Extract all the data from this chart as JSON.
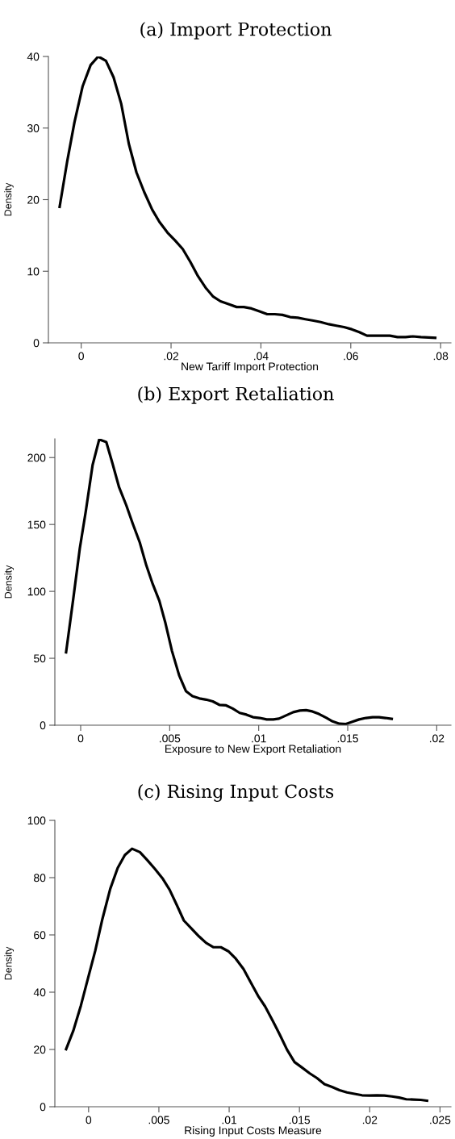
{
  "chart_data": [
    {
      "type": "line",
      "title": "(a) Import Protection",
      "xlabel": "New Tariff Import Protection",
      "ylabel": "Density",
      "xlim": [
        -0.0073,
        0.0823
      ],
      "ylim": [
        0,
        40
      ],
      "xticks": [
        {
          "value": 0,
          "label": "0"
        },
        {
          "value": 0.02,
          "label": ".02"
        },
        {
          "value": 0.04,
          "label": ".04"
        },
        {
          "value": 0.06,
          "label": ".06"
        },
        {
          "value": 0.08,
          "label": ".08"
        }
      ],
      "yticks": [
        0,
        10,
        20,
        30,
        40
      ],
      "grid": false,
      "legend": false,
      "series": [
        {
          "color": "#000000",
          "x": [
            -0.0048,
            -0.0031,
            -0.0015,
            0.0003,
            0.0021,
            0.0038,
            0.0055,
            0.0072,
            0.0089,
            0.0106,
            0.0123,
            0.014,
            0.0158,
            0.0174,
            0.0192,
            0.0209,
            0.0226,
            0.0243,
            0.026,
            0.0277,
            0.0293,
            0.031,
            0.0328,
            0.0346,
            0.0362,
            0.0379,
            0.0397,
            0.0414,
            0.0431,
            0.0448,
            0.0465,
            0.0482,
            0.0499,
            0.0517,
            0.0533,
            0.0551,
            0.0568,
            0.0585,
            0.0602,
            0.0619,
            0.0636,
            0.0653,
            0.0671,
            0.0687,
            0.0704,
            0.0722,
            0.0738,
            0.0756,
            0.0788
          ],
          "values": [
            19.0,
            25.4,
            30.8,
            35.8,
            38.8,
            40.0,
            39.4,
            37.1,
            33.4,
            27.8,
            23.8,
            21.1,
            18.6,
            16.9,
            15.4,
            14.3,
            13.1,
            11.3,
            9.3,
            7.7,
            6.5,
            5.8,
            5.4,
            5.0,
            5.0,
            4.8,
            4.4,
            4.0,
            4.0,
            3.9,
            3.6,
            3.5,
            3.3,
            3.1,
            2.9,
            2.6,
            2.4,
            2.2,
            1.9,
            1.5,
            1.0,
            1.0,
            1.0,
            1.0,
            0.8,
            0.8,
            0.9,
            0.8,
            0.7
          ]
        }
      ]
    },
    {
      "type": "line",
      "title": "(b) Export Retaliation",
      "xlabel": "Exposure to New Export Retaliation",
      "ylabel": "Density",
      "xlim": [
        -0.00145,
        0.0208
      ],
      "ylim": [
        0,
        214
      ],
      "xticks": [
        {
          "value": 0,
          "label": "0"
        },
        {
          "value": 0.005,
          "label": ".005"
        },
        {
          "value": 0.01,
          "label": ".01"
        },
        {
          "value": 0.015,
          "label": ".015"
        },
        {
          "value": 0.02,
          "label": ".02"
        }
      ],
      "yticks": [
        0,
        50,
        100,
        150,
        200
      ],
      "grid": false,
      "legend": false,
      "series": [
        {
          "color": "#000000",
          "x": [
            -0.00082,
            -0.00042,
            -5e-05,
            0.00029,
            0.00067,
            0.00104,
            0.00144,
            0.00179,
            0.00216,
            0.00256,
            0.00293,
            0.00332,
            0.00369,
            0.00405,
            0.00442,
            0.00476,
            0.00513,
            0.00553,
            0.00591,
            0.00628,
            0.00667,
            0.00705,
            0.00742,
            0.00779,
            0.00817,
            0.00854,
            0.00893,
            0.00931,
            0.00968,
            0.01006,
            0.01045,
            0.01082,
            0.01114,
            0.01154,
            0.01194,
            0.01231,
            0.01266,
            0.01301,
            0.01338,
            0.01378,
            0.01415,
            0.01454,
            0.0149,
            0.01526,
            0.01564,
            0.01603,
            0.0164,
            0.01676,
            0.01712,
            0.01747
          ],
          "values": [
            54.5,
            94,
            132,
            160,
            194.4,
            213.5,
            211.6,
            195.5,
            177.7,
            164.4,
            150.4,
            136.5,
            119.3,
            105.4,
            92.9,
            76.4,
            55.4,
            37.3,
            25.5,
            21.7,
            20.0,
            19.1,
            17.8,
            15.2,
            14.8,
            12.4,
            9.2,
            7.9,
            6.0,
            5.4,
            4.3,
            4.3,
            4.9,
            7.3,
            9.7,
            10.9,
            11.2,
            10.3,
            8.4,
            5.6,
            2.8,
            1.1,
            0.9,
            2.6,
            4.3,
            5.4,
            6.0,
            6.0,
            5.4,
            4.7
          ]
        }
      ]
    },
    {
      "type": "line",
      "title": "(c) Rising Input Costs",
      "xlabel": "Rising Input Costs Measure",
      "ylabel": "Density",
      "xlim": [
        -0.0024,
        0.02578
      ],
      "ylim": [
        0,
        100
      ],
      "xticks": [
        {
          "value": 0,
          "label": "0"
        },
        {
          "value": 0.005,
          "label": ".005"
        },
        {
          "value": 0.01,
          "label": ".01"
        },
        {
          "value": 0.015,
          "label": ".015"
        },
        {
          "value": 0.02,
          "label": ".02"
        },
        {
          "value": 0.025,
          "label": ".025"
        }
      ],
      "yticks": [
        0,
        20,
        40,
        60,
        80,
        100
      ],
      "grid": false,
      "legend": false,
      "series": [
        {
          "color": "#000000",
          "x": [
            -0.0016,
            -0.00109,
            -0.00055,
            -4e-05,
            0.00047,
            0.00098,
            0.00154,
            0.00207,
            0.00258,
            0.00309,
            0.00365,
            0.00418,
            0.00471,
            0.00525,
            0.00576,
            0.00627,
            0.00678,
            0.00732,
            0.00785,
            0.00836,
            0.00889,
            0.00941,
            0.00994,
            0.01047,
            0.01102,
            0.01154,
            0.01205,
            0.01256,
            0.01307,
            0.01359,
            0.01412,
            0.01465,
            0.01518,
            0.01572,
            0.01625,
            0.01678,
            0.01732,
            0.01785,
            0.01838,
            0.01891,
            0.01945,
            0.01998,
            0.02051,
            0.02104,
            0.02158,
            0.02209,
            0.0226,
            0.02311,
            0.02363,
            0.02408
          ],
          "values": [
            20.1,
            26.5,
            35.3,
            44.9,
            54.4,
            65.5,
            76.1,
            83.4,
            87.9,
            90.1,
            88.9,
            86.1,
            83.1,
            79.8,
            75.8,
            70.5,
            65.0,
            62.2,
            59.5,
            57.2,
            55.7,
            55.7,
            54.3,
            51.7,
            48.1,
            43.4,
            38.8,
            35.0,
            30.3,
            25.3,
            19.9,
            15.6,
            13.7,
            11.7,
            10.0,
            7.9,
            6.9,
            5.8,
            5.0,
            4.5,
            4.0,
            3.9,
            4.0,
            3.9,
            3.6,
            3.2,
            2.6,
            2.5,
            2.4,
            2.1
          ]
        }
      ]
    }
  ]
}
